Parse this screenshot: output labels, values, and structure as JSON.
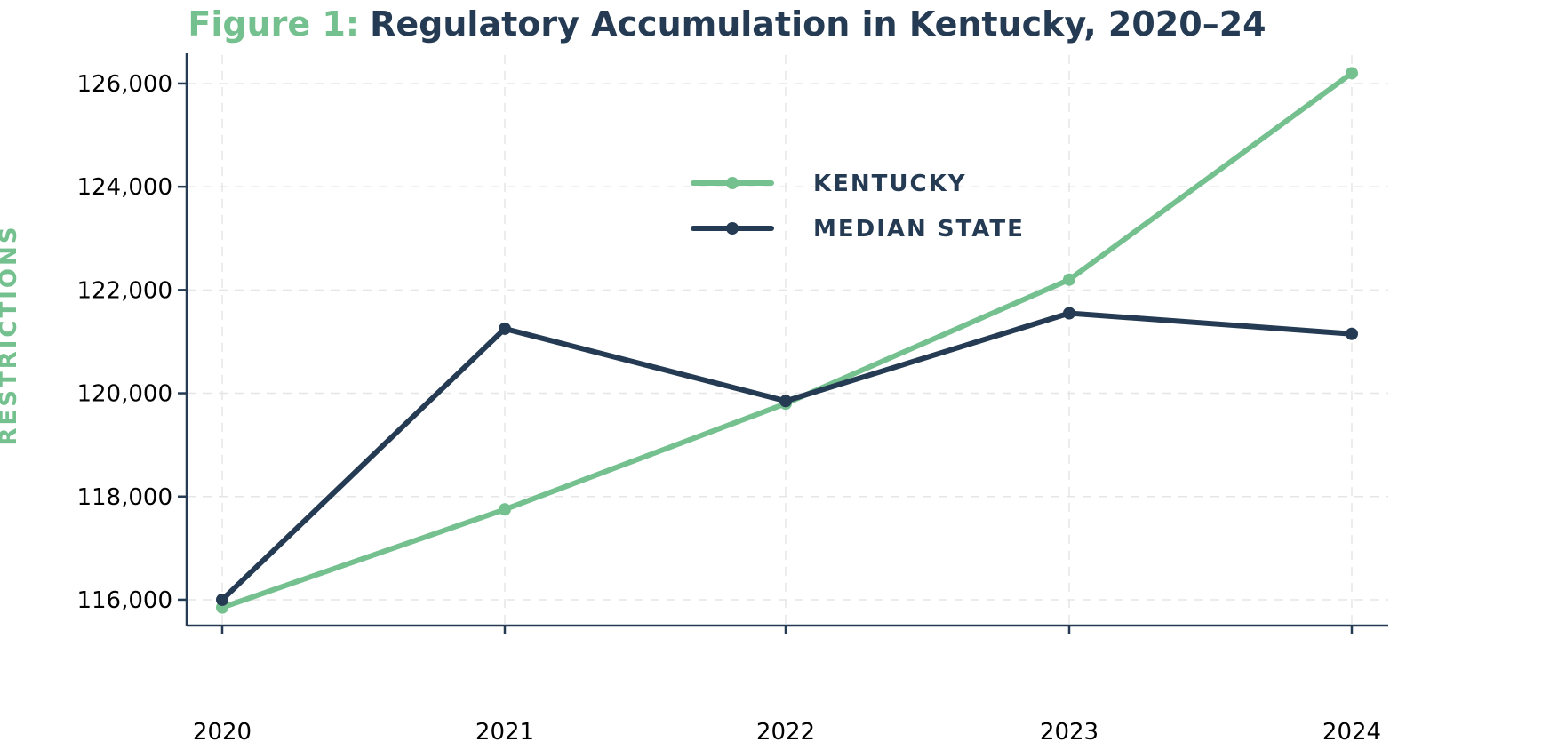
{
  "chart_data": {
    "type": "line",
    "title_prefix": "Figure 1:",
    "title": "Regulatory Accumulation in Kentucky, 2020–24",
    "xlabel": "",
    "ylabel": "RESTRICTIONS",
    "categories": [
      "2020",
      "2021",
      "2022",
      "2023",
      "2024"
    ],
    "yticks": [
      116000,
      118000,
      120000,
      122000,
      124000,
      126000
    ],
    "ytick_labels": [
      "116,000",
      "118,000",
      "120,000",
      "122,000",
      "124,000",
      "126,000"
    ],
    "ylim": [
      115500,
      126550
    ],
    "grid": true,
    "legend_position": "top-center",
    "series": [
      {
        "name": "KENTUCKY",
        "color": "#74c08e",
        "values": [
          115850,
          117750,
          119800,
          122200,
          126200
        ]
      },
      {
        "name": "MEDIAN STATE",
        "color": "#243b53",
        "values": [
          116000,
          121250,
          119850,
          121550,
          121150
        ]
      }
    ]
  }
}
